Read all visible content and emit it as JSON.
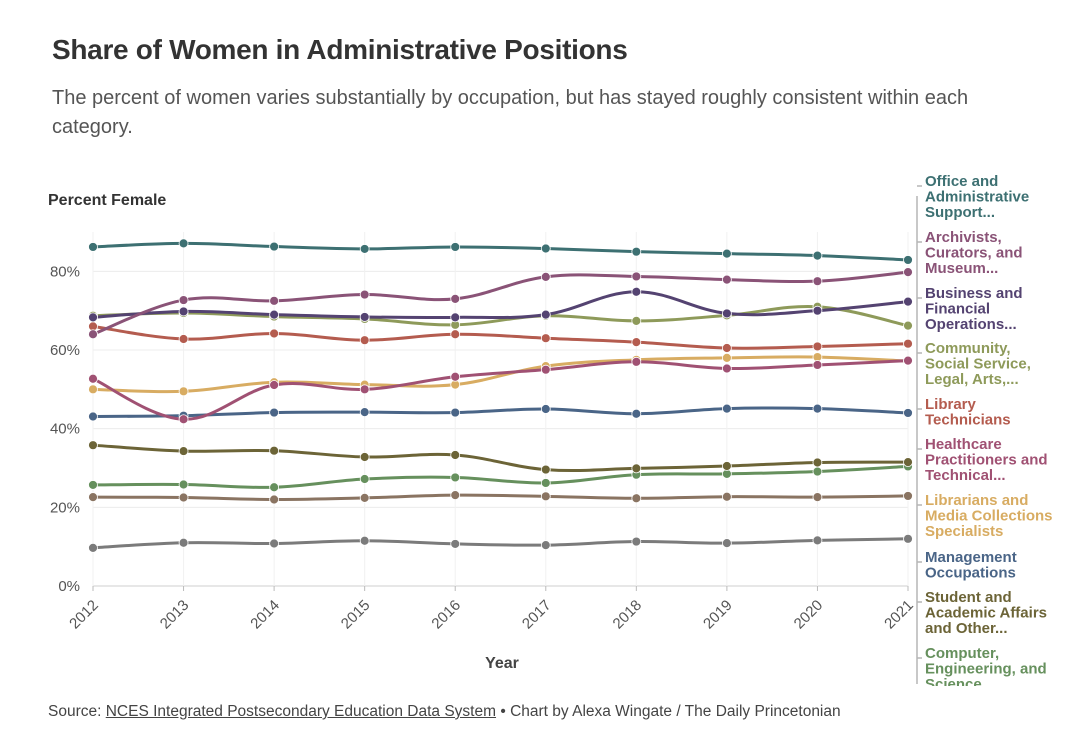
{
  "title": "Share of Women in Administrative Positions",
  "subtitle": "The percent of women varies substantially by occupation, but has stayed roughly consistent within each category.",
  "source": {
    "prefix": "Source: ",
    "link_text": "NCES Integrated Postsecondary Education Data System",
    "suffix": " • Chart by Alexa Wingate / The Daily Princetonian"
  },
  "chart_data": {
    "type": "line",
    "ylabel": "Percent Female",
    "xlabel": "Year",
    "ylim": [
      0,
      90
    ],
    "yticks": [
      "0%",
      "20%",
      "40%",
      "60%",
      "80%"
    ],
    "ytick_values": [
      0,
      20,
      40,
      60,
      80
    ],
    "x": [
      "2012",
      "2013",
      "2014",
      "2015",
      "2016",
      "2017",
      "2018",
      "2019",
      "2020",
      "2021"
    ],
    "series": [
      {
        "name": "Office and Administrative Support...",
        "label_lines": [
          "Office and",
          "Administrative",
          "Support..."
        ],
        "color": "#3d7072",
        "values": [
          86.2,
          87.1,
          86.3,
          85.7,
          86.2,
          85.8,
          85.0,
          84.5,
          84.0,
          82.9
        ]
      },
      {
        "name": "Archivists, Curators, and Museum...",
        "label_lines": [
          "Archivists,",
          "Curators, and",
          "Museum..."
        ],
        "color": "#8a5377",
        "values": [
          64.0,
          72.7,
          72.5,
          74.1,
          73.0,
          78.6,
          78.7,
          77.9,
          77.5,
          79.8
        ]
      },
      {
        "name": "Business and Financial Operations...",
        "label_lines": [
          "Business and",
          "Financial",
          "Operations..."
        ],
        "color": "#544371",
        "values": [
          68.3,
          69.8,
          69.0,
          68.4,
          68.3,
          69.0,
          74.8,
          69.3,
          70.0,
          72.3
        ]
      },
      {
        "name": "Community, Social Service, Legal, Arts,...",
        "label_lines": [
          "Community,",
          "Social Service,",
          "Legal, Arts,..."
        ],
        "color": "#8e9a5a",
        "values": [
          68.7,
          69.4,
          68.5,
          67.9,
          66.4,
          68.7,
          67.4,
          68.8,
          71.0,
          66.2
        ]
      },
      {
        "name": "Library Technicians",
        "label_lines": [
          "Library",
          "Technicians"
        ],
        "color": "#b45c4f",
        "values": [
          66.0,
          62.8,
          64.2,
          62.5,
          64.0,
          63.0,
          62.0,
          60.5,
          60.9,
          61.6
        ]
      },
      {
        "name": "Healthcare Practitioners and Technical...",
        "label_lines": [
          "Healthcare",
          "Practitioners and",
          "Technical..."
        ],
        "color": "#a05173",
        "values": [
          52.7,
          42.4,
          51.1,
          50.0,
          53.2,
          55.0,
          57.0,
          55.3,
          56.2,
          57.3
        ]
      },
      {
        "name": "Librarians and Media Collections Specialists",
        "label_lines": [
          "Librarians and",
          "Media Collections",
          "Specialists"
        ],
        "color": "#d8ac62",
        "values": [
          50.0,
          49.5,
          51.8,
          51.2,
          51.2,
          55.9,
          57.5,
          58.0,
          58.2,
          57.2
        ]
      },
      {
        "name": "Management Occupations",
        "label_lines": [
          "Management",
          "Occupations"
        ],
        "color": "#4a6587",
        "values": [
          43.1,
          43.3,
          44.1,
          44.2,
          44.1,
          45.0,
          43.8,
          45.1,
          45.1,
          44.0
        ]
      },
      {
        "name": "Student and Academic Affairs and Other...",
        "label_lines": [
          "Student and",
          "Academic Affairs",
          "and Other..."
        ],
        "color": "#6c6437",
        "values": [
          35.8,
          34.3,
          34.4,
          32.8,
          33.3,
          29.6,
          29.9,
          30.5,
          31.4,
          31.5
        ]
      },
      {
        "name": "Computer, Engineering, and Science...",
        "label_lines": [
          "Computer,",
          "Engineering, and",
          "Science..."
        ],
        "color": "#66905d",
        "values": [
          25.7,
          25.8,
          25.1,
          27.2,
          27.6,
          26.2,
          28.3,
          28.5,
          29.1,
          30.4
        ]
      },
      {
        "name": "Unlabeled series (brown)",
        "label_lines": [],
        "color": "#8a7462",
        "values": [
          22.6,
          22.5,
          22.0,
          22.4,
          23.1,
          22.8,
          22.3,
          22.7,
          22.6,
          22.9
        ]
      },
      {
        "name": "Unlabeled series (gray)",
        "label_lines": [],
        "color": "#7b7b7b",
        "values": [
          9.7,
          11.0,
          10.8,
          11.5,
          10.7,
          10.4,
          11.3,
          10.9,
          11.6,
          12.0
        ]
      }
    ]
  }
}
